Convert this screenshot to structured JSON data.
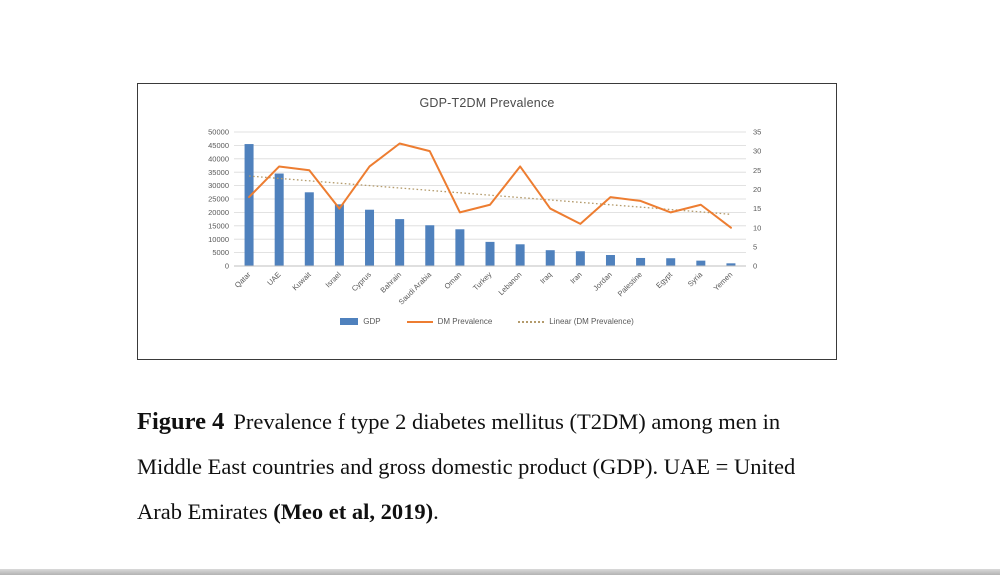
{
  "figure": {
    "caption": {
      "label": "Figure 4",
      "line1_rest": "Prevalence f type 2 diabetes mellitus (T2DM) among men in",
      "line2": "Middle East countries and gross domestic product (GDP). UAE = United",
      "line3_pre": "Arab Emirates ",
      "line3_bold": "(Meo et al, 2019)",
      "line3_post": "."
    }
  },
  "chart_data": {
    "type": "bar",
    "title": "GDP-T2DM Prevalence",
    "categories": [
      "Qatar",
      "UAE",
      "Kuwait",
      "Israel",
      "Cyprus",
      "Bahrain",
      "Saudi Arabia",
      "Oman",
      "Turkey",
      "Lebanon",
      "Iraq",
      "Iran",
      "Jordan",
      "Palestine",
      "Egypt",
      "Syria",
      "Yemen"
    ],
    "series": [
      {
        "name": "GDP",
        "type": "bar",
        "axis": "left",
        "values": [
          45500,
          34500,
          27500,
          23000,
          21000,
          17500,
          15200,
          13700,
          9000,
          8100,
          5900,
          5500,
          4100,
          3000,
          2900,
          2000,
          1000
        ]
      },
      {
        "name": "DM Prevalence",
        "type": "line",
        "axis": "right",
        "values": [
          18,
          26,
          25,
          15,
          26,
          32,
          30,
          14,
          16,
          26,
          15,
          11,
          18,
          17,
          14,
          16,
          10
        ]
      },
      {
        "name": "Linear (DM Prevalence)",
        "type": "trendline",
        "axis": "right",
        "start": 23.5,
        "end": 13.5
      }
    ],
    "left_axis": {
      "min": 0,
      "max": 50000,
      "step": 5000
    },
    "right_axis": {
      "min": 0,
      "max": 35,
      "step": 5
    },
    "xlabel": "",
    "ylabel": "",
    "grid": "horizontal",
    "legend": {
      "position": "bottom",
      "items": [
        {
          "label": "GDP",
          "swatch": "bar"
        },
        {
          "label": "DM Prevalence",
          "swatch": "line"
        },
        {
          "label": "Linear (DM Prevalence)",
          "swatch": "dotted"
        }
      ]
    },
    "colors": {
      "bar": "#4f81bd",
      "line": "#ed7d31",
      "trend": "#b49b6c",
      "grid": "#d9d9d9",
      "axis_text": "#595959",
      "axis_line": "#bfbfbf"
    }
  }
}
